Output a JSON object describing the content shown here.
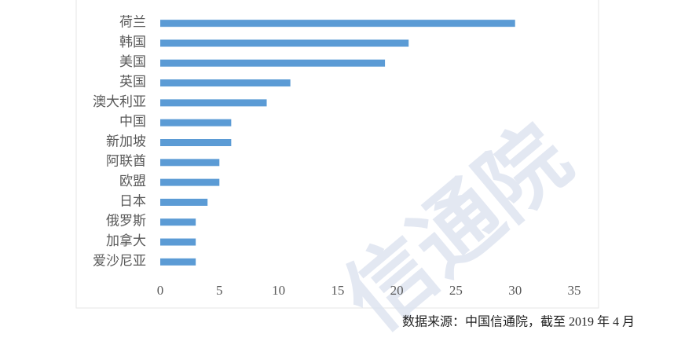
{
  "chart_data": {
    "type": "hbar",
    "categories": [
      "荷兰",
      "韩国",
      "美国",
      "英国",
      "澳大利亚",
      "中国",
      "新加坡",
      "阿联酋",
      "欧盟",
      "日本",
      "俄罗斯",
      "加拿大",
      "爱沙尼亚"
    ],
    "values": [
      30,
      21,
      19,
      11,
      9,
      6,
      6,
      5,
      5,
      4,
      3,
      3,
      3
    ],
    "color": "#5b9bd5",
    "xlim": [
      0,
      35
    ],
    "xticks": [
      0,
      5,
      10,
      15,
      20,
      25,
      30,
      35
    ],
    "grid": false,
    "source": "数据来源：中国信通院，截至 2019 年 4 月",
    "watermark": "信通院"
  }
}
